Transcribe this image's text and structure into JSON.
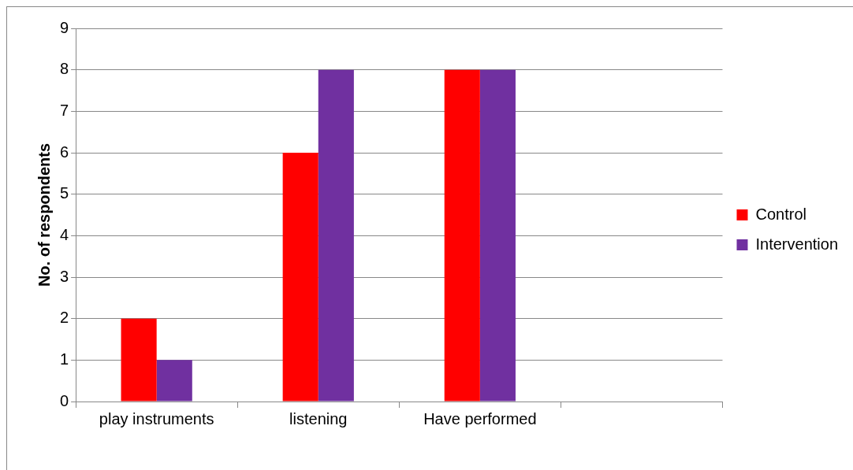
{
  "chart_data": {
    "type": "bar",
    "ylabel": "No. of respondents",
    "categories": [
      "play instruments",
      "listening",
      "Have performed",
      null
    ],
    "series": [
      {
        "name": "Control",
        "color": "#ff0000",
        "values": [
          2,
          6,
          8,
          null
        ]
      },
      {
        "name": "Intervention",
        "color": "#7030a0",
        "values": [
          1,
          8,
          8,
          null
        ]
      }
    ],
    "ylim": [
      0,
      9
    ],
    "yticks": [
      0,
      1,
      2,
      3,
      4,
      5,
      6,
      7,
      8,
      9
    ],
    "grid": "y",
    "legend": "right"
  }
}
